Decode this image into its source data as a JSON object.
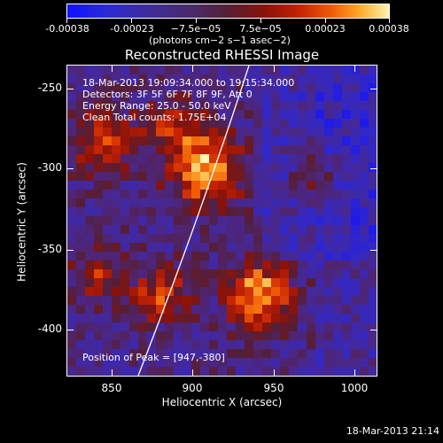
{
  "colorbar": {
    "ticks": [
      "-0.00038",
      "-0.00023",
      "−7.5e−05",
      "7.5e−05",
      "0.00023",
      "0.00038"
    ],
    "units": "(photons cm−2 s−1 asec−2)"
  },
  "plot": {
    "title": "Reconstructed RHESSI Image",
    "xlabel": "Heliocentric X (arcsec)",
    "ylabel": "Heliocentric Y (arcsec)",
    "xticks": [
      "850",
      "900",
      "950",
      "1000"
    ],
    "yticks": [
      "-250",
      "-300",
      "-350",
      "-400"
    ],
    "annotations": {
      "time_range": "18-Mar-2013 19:09:34.000 to 19:15:34.000",
      "detectors": "Detectors: 3F 5F 6F 7F 8F 9F, Att 0",
      "energy": "Energy Range: 25.0 - 50.0 keV",
      "clean": "Clean    Total counts: 1.75E+04",
      "peak": "Position of Peak = [947,-380]"
    }
  },
  "footer": {
    "timestamp": "18-Mar-2013 21:14"
  },
  "colors": {
    "frame": "#ffffff",
    "background": "#000000",
    "limb": "#ffffff"
  }
}
